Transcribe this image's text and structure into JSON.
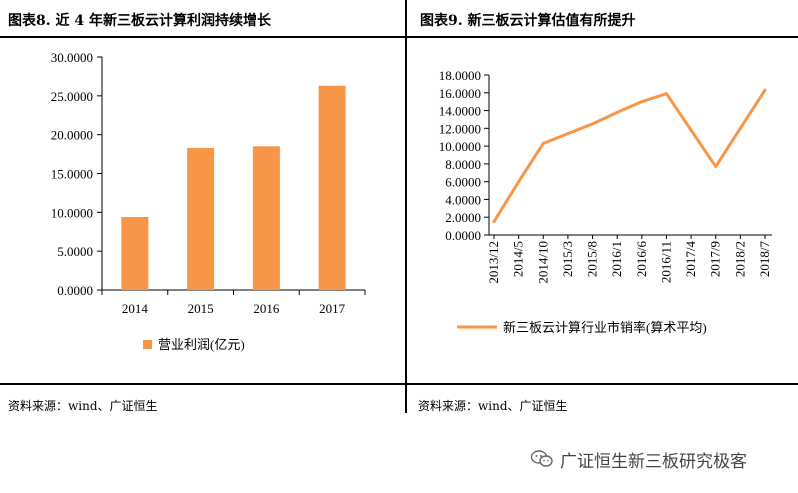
{
  "left_panel": {
    "title": "图表8.    近 4 年新三板云计算利润持续增长",
    "source": "资料来源：wind、广证恒生"
  },
  "right_panel": {
    "title": "图表9.    新三板云计算估值有所提升",
    "source": "资料来源：wind、广证恒生"
  },
  "watermark": {
    "text": "广证恒生新三板研究极客",
    "icon": "wechat-icon"
  },
  "colors": {
    "series": "#F79646",
    "axis": "#000000",
    "rule": "#000000",
    "watermark": "#444444"
  },
  "chart_data": [
    {
      "type": "bar",
      "title": "",
      "categories": [
        "2014",
        "2015",
        "2016",
        "2017"
      ],
      "series": [
        {
          "name": "营业利润(亿元)",
          "values": [
            9.4,
            18.3,
            18.5,
            26.3
          ]
        }
      ],
      "ylim": [
        0,
        30
      ],
      "yticks": [
        "0.0000",
        "5.0000",
        "10.0000",
        "15.0000",
        "20.0000",
        "25.0000",
        "30.0000"
      ],
      "xlabel": "",
      "ylabel": "",
      "grid": false,
      "legend": "bottom"
    },
    {
      "type": "line",
      "title": "",
      "categories": [
        "2013/12",
        "2014/5",
        "2014/10",
        "2015/3",
        "2015/8",
        "2016/1",
        "2016/6",
        "2016/11",
        "2017/4",
        "2017/9",
        "2018/2",
        "2018/7"
      ],
      "series": [
        {
          "name": "新三板云计算行业市销率(算术平均)",
          "values": [
            1.5,
            6.0,
            10.3,
            11.4,
            12.5,
            13.8,
            15.0,
            15.9,
            11.8,
            7.7,
            12.0,
            16.3
          ]
        }
      ],
      "ylim": [
        0,
        18
      ],
      "yticks": [
        "0.0000",
        "2.0000",
        "4.0000",
        "6.0000",
        "8.0000",
        "10.0000",
        "12.0000",
        "14.0000",
        "16.0000",
        "18.0000"
      ],
      "xlabel": "",
      "ylabel": "",
      "grid": false,
      "legend": "bottom"
    }
  ]
}
